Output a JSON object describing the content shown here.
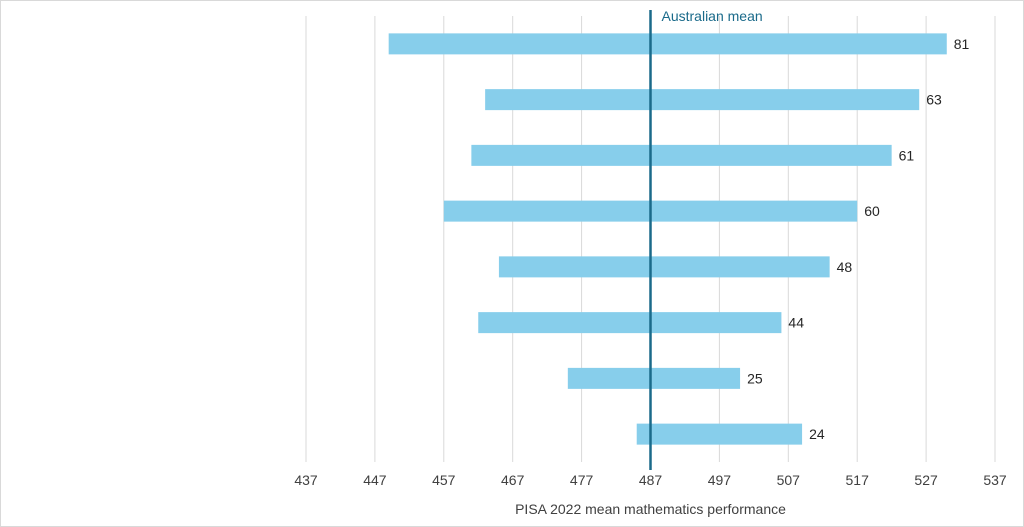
{
  "chart_data": {
    "type": "bar",
    "orientation": "horizontal-floating",
    "categories": [
      "",
      "",
      "",
      "",
      "",
      "",
      "",
      ""
    ],
    "series": [
      {
        "start": [
          449,
          463,
          461,
          457,
          465,
          462,
          475,
          485
        ],
        "end": [
          530,
          526,
          522,
          517,
          513,
          506,
          500,
          509
        ],
        "values": [
          81,
          63,
          61,
          60,
          48,
          44,
          25,
          24
        ]
      }
    ],
    "xlabel": "PISA 2022 mean mathematics performance",
    "xlim": [
      437,
      537
    ],
    "xticks": [
      437,
      447,
      457,
      467,
      477,
      487,
      497,
      507,
      517,
      527,
      537
    ],
    "reference_line": {
      "value": 487,
      "label": "Australian mean",
      "color": "#1a6a8a"
    },
    "bar_color": "#87ceeb",
    "gridlines": true
  }
}
